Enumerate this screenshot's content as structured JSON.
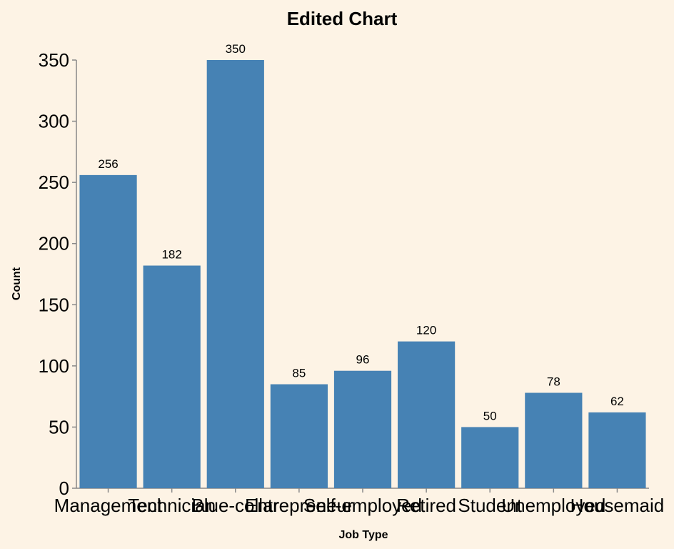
{
  "chart_data": {
    "type": "bar",
    "title": "Edited Chart",
    "xlabel": "Job Type",
    "ylabel": "Count",
    "categories": [
      "Management",
      "Technician",
      "Blue-collar",
      "Entrepreneur",
      "Self-employed",
      "Retired",
      "Student",
      "Unemployed",
      "Housemaid"
    ],
    "values": [
      256,
      182,
      350,
      85,
      96,
      120,
      50,
      78,
      62
    ],
    "ylim": [
      0,
      350
    ],
    "yticks": [
      0,
      50,
      100,
      150,
      200,
      250,
      300,
      350
    ],
    "grid": false,
    "bar_color": "#4682b4",
    "background": "#fdf3e5",
    "show_data_labels": true
  }
}
